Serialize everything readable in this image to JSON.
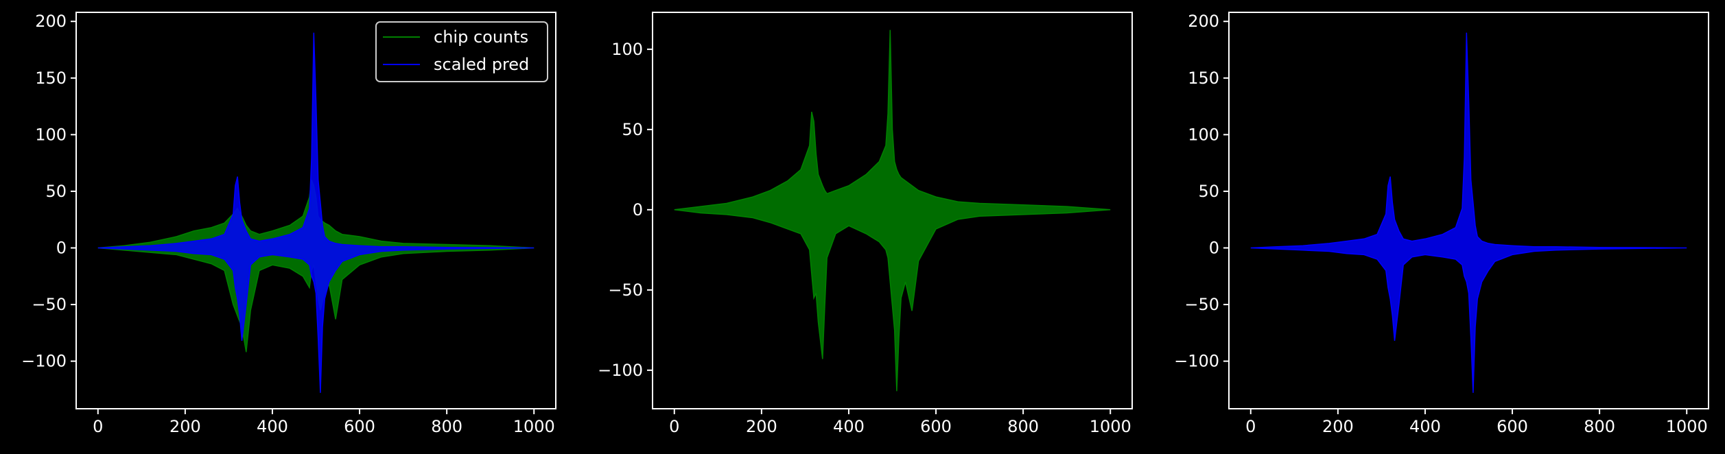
{
  "figure": {
    "background": "#000000",
    "foreground": "#ffffff"
  },
  "chart_data": [
    {
      "type": "line",
      "title": "",
      "xlabel": "",
      "ylabel": "",
      "xlim": [
        -50,
        1050
      ],
      "ylim": [
        -142,
        208
      ],
      "xticks": [
        0,
        200,
        400,
        600,
        800,
        1000
      ],
      "yticks": [
        -100,
        -50,
        0,
        50,
        100,
        150,
        200
      ],
      "xtick_labels": [
        "0",
        "200",
        "400",
        "600",
        "800",
        "1000"
      ],
      "ytick_labels": [
        "−100",
        "−50",
        "0",
        "50",
        "100",
        "150",
        "200"
      ],
      "legend": {
        "placement": "top-right",
        "entries": [
          "chip counts",
          "scaled pred"
        ]
      },
      "series": [
        {
          "name": "chip counts",
          "color": "#008000",
          "x": [
            0,
            60,
            120,
            180,
            220,
            260,
            290,
            310,
            320,
            330,
            340,
            350,
            370,
            400,
            440,
            470,
            485,
            490,
            495,
            500,
            505,
            510,
            520,
            530,
            545,
            560,
            600,
            650,
            700,
            800,
            900,
            1000
          ],
          "upper": [
            0,
            2,
            5,
            10,
            15,
            18,
            22,
            30,
            35,
            28,
            20,
            15,
            12,
            15,
            20,
            28,
            45,
            60,
            55,
            45,
            28,
            25,
            22,
            20,
            15,
            12,
            10,
            6,
            4,
            3,
            2,
            0
          ],
          "lower": [
            0,
            -2,
            -4,
            -6,
            -10,
            -14,
            -20,
            -50,
            -60,
            -70,
            -92,
            -55,
            -20,
            -15,
            -18,
            -25,
            -35,
            -20,
            -15,
            -30,
            -45,
            -55,
            -40,
            -32,
            -63,
            -28,
            -15,
            -8,
            -5,
            -3,
            -2,
            0
          ]
        },
        {
          "name": "scaled pred",
          "color": "#0000ff",
          "x": [
            0,
            60,
            120,
            180,
            220,
            260,
            290,
            310,
            315,
            320,
            325,
            330,
            340,
            350,
            370,
            400,
            440,
            470,
            485,
            490,
            495,
            500,
            505,
            510,
            515,
            520,
            530,
            545,
            560,
            600,
            650,
            700,
            800,
            900,
            1000
          ],
          "upper": [
            0,
            1,
            2,
            4,
            6,
            8,
            12,
            30,
            55,
            63,
            40,
            25,
            15,
            8,
            6,
            8,
            12,
            18,
            35,
            80,
            190,
            130,
            60,
            40,
            20,
            10,
            6,
            4,
            3,
            2,
            1,
            1,
            0.5,
            0.3,
            0
          ],
          "lower": [
            0,
            -1,
            -2,
            -3,
            -5,
            -6,
            -10,
            -20,
            -35,
            -45,
            -60,
            -82,
            -50,
            -15,
            -8,
            -6,
            -8,
            -10,
            -15,
            -25,
            -30,
            -40,
            -80,
            -128,
            -70,
            -45,
            -30,
            -20,
            -12,
            -6,
            -3,
            -2,
            -1,
            -0.5,
            0
          ]
        }
      ]
    },
    {
      "type": "line",
      "title": "",
      "xlabel": "",
      "ylabel": "",
      "xlim": [
        -50,
        1050
      ],
      "ylim": [
        -124,
        123
      ],
      "xticks": [
        0,
        200,
        400,
        600,
        800,
        1000
      ],
      "yticks": [
        -100,
        -50,
        0,
        50,
        100
      ],
      "xtick_labels": [
        "0",
        "200",
        "400",
        "600",
        "800",
        "1000"
      ],
      "ytick_labels": [
        "−100",
        "−50",
        "0",
        "50",
        "100"
      ],
      "series": [
        {
          "color": "#008000",
          "x": [
            0,
            60,
            120,
            180,
            220,
            260,
            290,
            310,
            315,
            320,
            325,
            330,
            340,
            345,
            350,
            370,
            400,
            440,
            470,
            485,
            490,
            495,
            500,
            505,
            510,
            515,
            520,
            530,
            545,
            560,
            600,
            650,
            700,
            800,
            900,
            1000
          ],
          "upper": [
            0,
            2,
            4,
            8,
            12,
            18,
            25,
            40,
            61,
            55,
            35,
            22,
            15,
            12,
            10,
            12,
            15,
            22,
            30,
            40,
            60,
            112,
            50,
            30,
            25,
            22,
            20,
            18,
            15,
            12,
            8,
            5,
            4,
            3,
            2,
            0
          ],
          "lower": [
            0,
            -2,
            -3,
            -5,
            -8,
            -12,
            -15,
            -25,
            -40,
            -55,
            -52,
            -70,
            -93,
            -60,
            -30,
            -15,
            -10,
            -15,
            -20,
            -25,
            -30,
            -45,
            -60,
            -75,
            -113,
            -80,
            -55,
            -45,
            -63,
            -32,
            -12,
            -6,
            -4,
            -3,
            -2,
            0
          ]
        }
      ]
    },
    {
      "type": "line",
      "title": "",
      "xlabel": "",
      "ylabel": "",
      "xlim": [
        -50,
        1050
      ],
      "ylim": [
        -142,
        208
      ],
      "xticks": [
        0,
        200,
        400,
        600,
        800,
        1000
      ],
      "yticks": [
        -100,
        -50,
        0,
        50,
        100,
        150,
        200
      ],
      "xtick_labels": [
        "0",
        "200",
        "400",
        "600",
        "800",
        "1000"
      ],
      "ytick_labels": [
        "−100",
        "−50",
        "0",
        "50",
        "100",
        "150",
        "200"
      ],
      "series": [
        {
          "color": "#0000ff",
          "x": [
            0,
            60,
            120,
            180,
            220,
            260,
            290,
            310,
            315,
            320,
            325,
            330,
            340,
            350,
            370,
            400,
            440,
            470,
            485,
            490,
            495,
            500,
            505,
            510,
            515,
            520,
            530,
            545,
            560,
            600,
            650,
            700,
            800,
            900,
            1000
          ],
          "upper": [
            0,
            1,
            2,
            4,
            6,
            8,
            12,
            30,
            55,
            63,
            40,
            25,
            15,
            8,
            6,
            8,
            12,
            18,
            35,
            80,
            190,
            130,
            60,
            40,
            20,
            10,
            6,
            4,
            3,
            2,
            1,
            1,
            0.5,
            0.3,
            0
          ],
          "lower": [
            0,
            -1,
            -2,
            -3,
            -5,
            -6,
            -10,
            -20,
            -35,
            -45,
            -60,
            -82,
            -50,
            -15,
            -8,
            -6,
            -8,
            -10,
            -15,
            -25,
            -30,
            -40,
            -80,
            -128,
            -70,
            -45,
            -30,
            -20,
            -12,
            -6,
            -3,
            -2,
            -1,
            -0.5,
            0
          ]
        }
      ]
    }
  ]
}
